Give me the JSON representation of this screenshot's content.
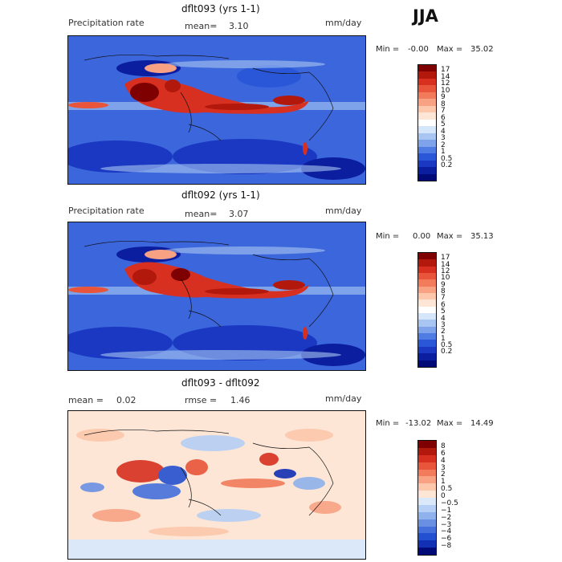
{
  "season": "JJA",
  "panels": [
    {
      "title": "dflt093 (yrs 1-1)",
      "left_label": "Precipitation rate",
      "mean_label": "mean=",
      "mean_value": "3.10",
      "units": "mm/day",
      "min_label": "Min =",
      "min_value": "-0.00",
      "max_label": "Max =",
      "max_value": "35.02"
    },
    {
      "title": "dflt092 (yrs 1-1)",
      "left_label": "Precipitation rate",
      "mean_label": "mean=",
      "mean_value": "3.07",
      "units": "mm/day",
      "min_label": "Min =",
      "min_value": "0.00",
      "max_label": "Max =",
      "max_value": "35.13"
    },
    {
      "title": "dflt093 - dflt092",
      "left_label": "mean =",
      "left_value": "0.02",
      "rmse_label": "rmse =",
      "rmse_value": "1.46",
      "units": "mm/day",
      "min_label": "Min =",
      "min_value": "-13.02",
      "max_label": "Max =",
      "max_value": "14.49"
    }
  ],
  "precip_colorbar": {
    "ticks": [
      "17",
      "14",
      "12",
      "10",
      "9",
      "8",
      "7",
      "6",
      "5",
      "4",
      "3",
      "2",
      "1",
      "0.5",
      "0.2"
    ],
    "colors": [
      "#7f0000",
      "#b2180c",
      "#d73020",
      "#e8553a",
      "#f27b5c",
      "#f8a283",
      "#fcc7ab",
      "#fde6d6",
      "#ffffff",
      "#d6e6fa",
      "#a9c6f2",
      "#7ea3ea",
      "#4f7ce2",
      "#2a57d8",
      "#1a38c2",
      "#0c1ea0",
      "#020a78"
    ]
  },
  "diff_colorbar": {
    "ticks": [
      "8",
      "6",
      "4",
      "3",
      "2",
      "1",
      "0.5",
      "0",
      "−0.5",
      "−1",
      "−2",
      "−3",
      "−4",
      "−6",
      "−8"
    ],
    "colors": [
      "#7f0000",
      "#b2180c",
      "#d73020",
      "#e8553a",
      "#f27b5c",
      "#f8a283",
      "#fcc7ab",
      "#fde6d6",
      "#dbe8fa",
      "#b6cff4",
      "#8fb1ec",
      "#6a90e4",
      "#4570dc",
      "#2350d0",
      "#1230b4",
      "#020a78"
    ]
  }
}
